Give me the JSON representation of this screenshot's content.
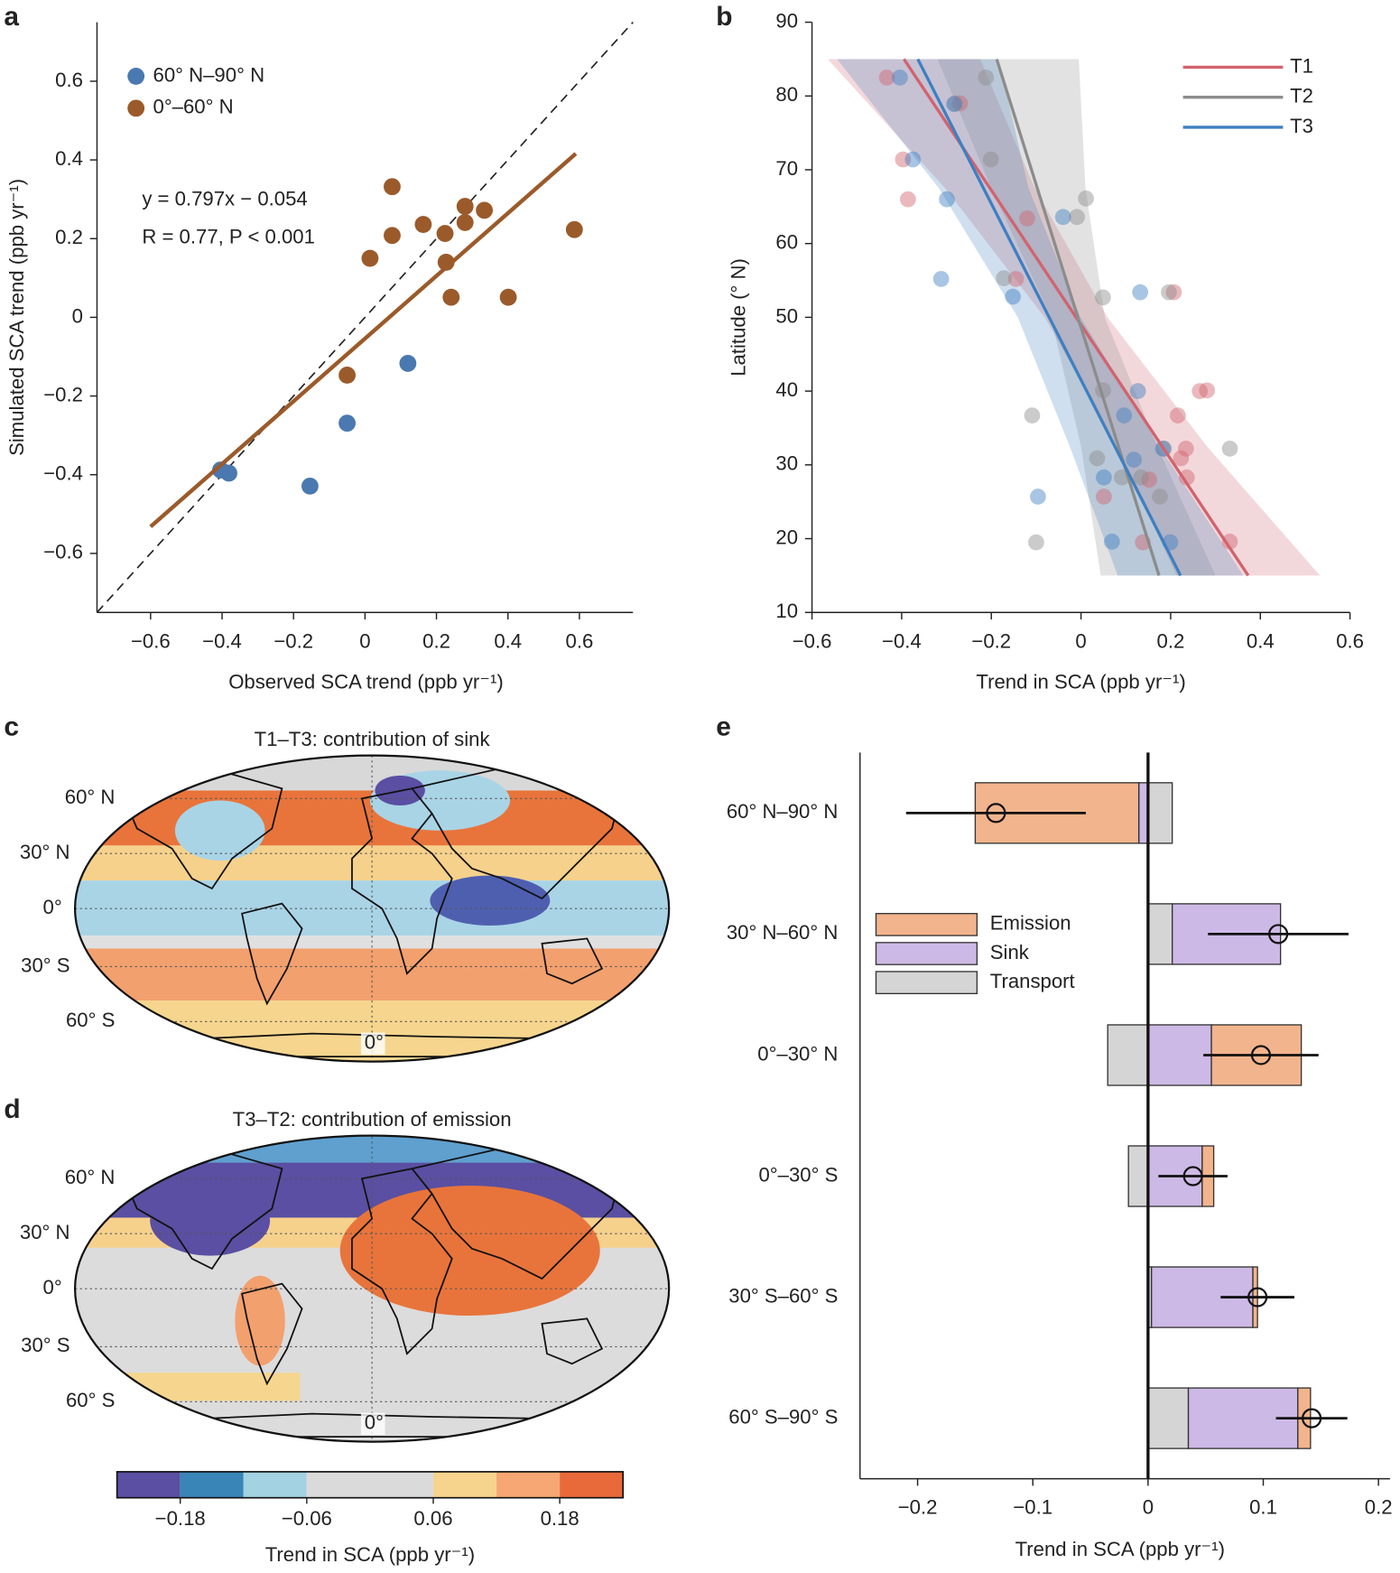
{
  "chart_data": [
    {
      "panel": "a",
      "type": "scatter",
      "x_label": "Observed SCA trend (ppb yr⁻¹)",
      "y_label": "Simulated SCA trend (ppb yr⁻¹)",
      "xlim": [
        -0.75,
        0.75
      ],
      "ylim": [
        -0.75,
        0.75
      ],
      "xticks": [
        {
          "value": -0.6,
          "label": "−0.6"
        },
        {
          "value": -0.4,
          "label": "−0.4"
        },
        {
          "value": -0.2,
          "label": "−0.2"
        },
        0,
        0.2,
        0.4,
        0.6
      ],
      "yticks": [
        {
          "value": -0.6,
          "label": "−0.6"
        },
        {
          "value": -0.4,
          "label": "−0.4"
        },
        {
          "value": -0.2,
          "label": "−0.2"
        },
        0,
        0.2,
        0.4,
        0.6
      ],
      "identity_line": true,
      "series": [
        {
          "name": "60° N–90° N",
          "color": "#4a78b0",
          "x": [
            -0.404,
            -0.381,
            -0.154,
            -0.05,
            0.12
          ],
          "y": [
            -0.388,
            -0.396,
            -0.429,
            -0.269,
            -0.117
          ]
        },
        {
          "name": "0°–60° N",
          "color": "#9b5a2a",
          "x": [
            0.014,
            0.076,
            0.076,
            0.163,
            0.224,
            0.227,
            0.241,
            0.28,
            0.28,
            0.334,
            0.401,
            0.586,
            -0.05
          ],
          "y": [
            0.15,
            0.332,
            0.208,
            0.236,
            0.213,
            0.14,
            0.051,
            0.282,
            0.241,
            0.272,
            0.051,
            0.223,
            -0.147
          ]
        }
      ],
      "fit": {
        "color": "#9b5a2a",
        "x": [
          -0.6,
          0.59
        ],
        "y": [
          -0.532,
          0.416
        ]
      },
      "annotations": [
        "y = 0.797x − 0.054",
        "R = 0.77, P < 0.001"
      ]
    },
    {
      "panel": "b",
      "type": "scatter",
      "x_label": "Trend in SCA (ppb yr⁻¹)",
      "y_label": "Latitude (° N)",
      "xlim": [
        -0.6,
        0.6
      ],
      "ylim": [
        10,
        90
      ],
      "xticks": [
        {
          "value": -0.6,
          "label": "−0.6"
        },
        {
          "value": -0.4,
          "label": "−0.4"
        },
        {
          "value": -0.2,
          "label": "−0.2"
        },
        0,
        0.2,
        0.4,
        0.6
      ],
      "yticks": [
        10,
        20,
        30,
        40,
        50,
        60,
        70,
        80,
        90
      ],
      "series": [
        {
          "name": "T1",
          "color": "#d1636e",
          "x": [
            -0.433,
            -0.27,
            -0.397,
            -0.386,
            -0.12,
            -0.145,
            0.051,
            0.152,
            0.207,
            0.265,
            0.281,
            0.216,
            0.234,
            0.223,
            0.236,
            0.138,
            0.332
          ],
          "y": [
            82.5,
            79.0,
            71.4,
            66.0,
            63.4,
            55.2,
            25.7,
            28.0,
            53.4,
            40.0,
            40.1,
            36.7,
            32.2,
            30.9,
            28.3,
            19.5,
            19.6
          ],
          "line": {
            "x": [
              -0.395,
              0.373
            ],
            "y": [
              85,
              15
            ]
          },
          "band": {
            "y": [
              85,
              67.5,
              50,
              32.5,
              15
            ],
            "x_lower": [
              -0.565,
              -0.303,
              -0.081,
              0.081,
              0.213
            ],
            "x_upper": [
              -0.225,
              -0.103,
              0.059,
              0.281,
              0.533
            ]
          }
        },
        {
          "name": "T2",
          "color": "#8c8c8c",
          "x": [
            -0.212,
            -0.201,
            -0.281,
            0.011,
            -0.009,
            -0.172,
            0.049,
            0.196,
            -0.109,
            0.049,
            0.036,
            0.091,
            0.176,
            0.185,
            0.332,
            -0.1,
            0.134
          ],
          "y": [
            82.5,
            71.4,
            79.0,
            66.1,
            63.6,
            55.3,
            52.7,
            53.4,
            36.7,
            40.1,
            30.9,
            28.3,
            25.7,
            32.2,
            32.2,
            19.5,
            28.3
          ],
          "line": {
            "x": [
              -0.188,
              0.174
            ],
            "y": [
              85,
              15
            ]
          },
          "band": {
            "y": [
              85,
              67.5,
              50,
              32.5,
              15
            ],
            "x_lower": [
              -0.32,
              -0.2,
              -0.067,
              0.0,
              0.044
            ],
            "x_upper": [
              -0.005,
              0.01,
              0.053,
              0.17,
              0.3
            ]
          }
        },
        {
          "name": "T3",
          "color": "#3f7fc1",
          "x": [
            -0.404,
            -0.283,
            -0.375,
            -0.299,
            -0.312,
            -0.04,
            -0.152,
            0.132,
            0.127,
            0.096,
            0.183,
            0.118,
            0.051,
            -0.096,
            0.069,
            0.199
          ],
          "y": [
            82.5,
            78.9,
            71.4,
            66.0,
            55.2,
            63.6,
            52.8,
            53.4,
            40.0,
            36.7,
            32.2,
            30.7,
            28.3,
            25.7,
            19.6,
            19.5
          ],
          "line": {
            "x": [
              -0.364,
              0.222
            ],
            "y": [
              85,
              15
            ]
          },
          "band": {
            "y": [
              85,
              67.5,
              50,
              32.5,
              15
            ],
            "x_lower": [
              -0.544,
              -0.317,
              -0.141,
              -0.025,
              0.082
            ],
            "x_upper": [
              -0.184,
              -0.117,
              -0.001,
              0.175,
              0.362
            ]
          }
        }
      ]
    },
    {
      "panel": "c",
      "type": "map",
      "title": "T1–T3: contribution of sink",
      "lat_labels": [
        "60° N",
        "30° N",
        "0°",
        "30° S",
        "60° S"
      ],
      "lon_label": "0°"
    },
    {
      "panel": "d",
      "type": "map",
      "title": "T3–T2: contribution of emission",
      "lat_labels": [
        "60° N",
        "30° N",
        "0°",
        "30° S",
        "60° S"
      ],
      "lon_label": "0°",
      "colorbar": {
        "colors": [
          "#5a4fa2",
          "#3a85b8",
          "#a3d2e3",
          "#dadada",
          "#f7d48d",
          "#f6a773",
          "#e8693a"
        ],
        "lim": [
          -0.24,
          0.24
        ],
        "bounds": [
          -0.18,
          -0.12,
          -0.06,
          0.06,
          0.12,
          0.18
        ],
        "ticks": [
          {
            "value": -0.18,
            "label": "−0.18"
          },
          {
            "value": -0.06,
            "label": "−0.06"
          },
          0.06,
          0.18
        ],
        "label": "Trend in SCA (ppb yr⁻¹)"
      }
    },
    {
      "panel": "e",
      "type": "bar",
      "orientation": "horizontal",
      "stacked": true,
      "x_label": "Trend in SCA (ppb yr⁻¹)",
      "xlim": [
        -0.25,
        0.21
      ],
      "xticks": [
        {
          "value": -0.2,
          "label": "−0.2"
        },
        {
          "value": -0.1,
          "label": "−0.1"
        },
        0,
        0.1,
        0.2
      ],
      "categories": [
        "60° N–90° N",
        "30° N–60° N",
        "0°–30° N",
        "0°–30° S",
        "30° S–60° S",
        "60° S–90° S"
      ],
      "series": [
        {
          "name": "Emission",
          "color": "#f2b48c",
          "values": [
            -0.142,
            0.0,
            0.078,
            0.01,
            0.004,
            0.011
          ]
        },
        {
          "name": "Sink",
          "color": "#cdb9e6",
          "values": [
            -0.008,
            0.094,
            0.055,
            0.047,
            0.088,
            0.095
          ]
        },
        {
          "name": "Transport",
          "color": "#d5d5d5",
          "values": [
            0.021,
            0.021,
            -0.035,
            -0.017,
            0.003,
            0.035
          ]
        }
      ],
      "net": {
        "values": [
          -0.132,
          0.113,
          0.098,
          0.039,
          0.095,
          0.142
        ],
        "error": [
          0.078,
          0.061,
          0.05,
          0.03,
          0.032,
          0.031
        ]
      },
      "legend": "upper left"
    }
  ]
}
